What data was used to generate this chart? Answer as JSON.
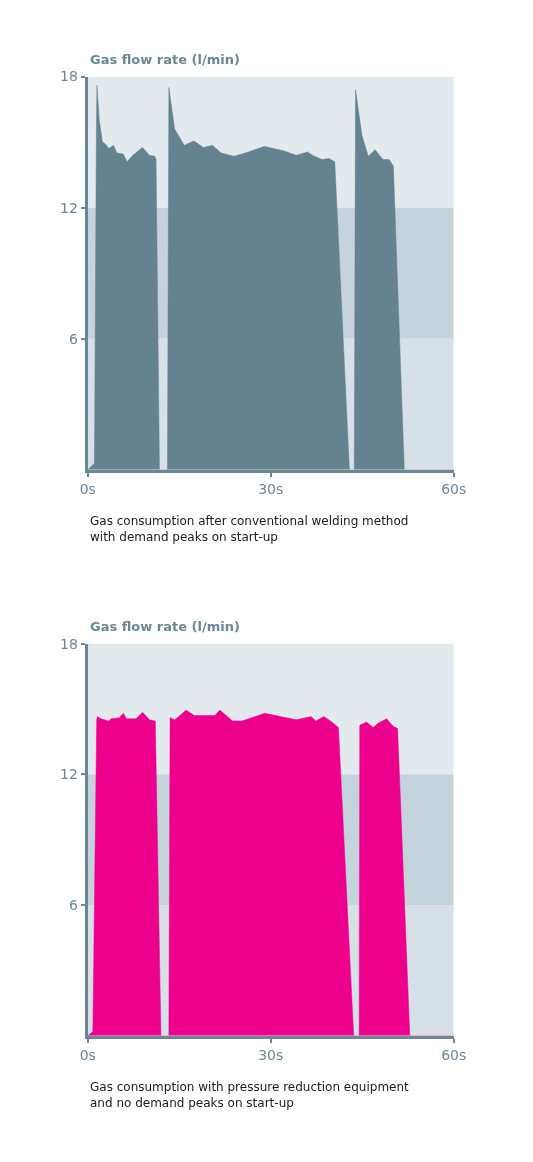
{
  "chart_data": [
    {
      "type": "area",
      "ylabel": "Gas flow rate (l/min)",
      "xlim": [
        0,
        60
      ],
      "ylim": [
        0,
        18
      ],
      "xticks": [
        {
          "value": 0,
          "label": "0s"
        },
        {
          "value": 30,
          "label": "30s"
        },
        {
          "value": 60,
          "label": "60s"
        }
      ],
      "yticks": [
        6,
        12,
        18
      ],
      "grid": false,
      "bands": [
        {
          "axis": "y",
          "from": 0,
          "to": 6,
          "color": "#d6e0e6"
        },
        {
          "axis": "y",
          "from": 6,
          "to": 12,
          "color": "#c5d3dc"
        },
        {
          "axis": "y",
          "from": 12,
          "to": 18,
          "color": "#e3eaee"
        }
      ],
      "series": [
        {
          "color": "#64828f",
          "x": [
            0,
            1.1,
            1.42,
            1.5,
            1.9,
            2.41,
            2.94,
            3.46,
            4.25,
            4.77,
            5.82,
            6.45,
            7.4,
            8.98,
            10.1,
            10.98,
            11.2,
            11.76,
            13.07,
            13.3,
            14.24,
            15.82,
            17.4,
            18.98,
            20.45,
            21.87,
            23.97,
            25.8,
            28.96,
            32.1,
            34.2,
            36.06,
            36.8,
            38.4,
            39.55,
            40.5,
            42.9,
            43.7,
            43.9,
            44.96,
            46.0,
            47.1,
            48.4,
            49.4,
            50.1,
            51.9,
            60
          ],
          "values": [
            0,
            0.3,
            15.5,
            17.6,
            16.0,
            15.0,
            14.9,
            14.7,
            14.85,
            14.5,
            14.45,
            14.1,
            14.4,
            14.75,
            14.4,
            14.35,
            14.2,
            0,
            0,
            17.5,
            15.6,
            14.85,
            15.05,
            14.75,
            14.85,
            14.5,
            14.35,
            14.5,
            14.8,
            14.6,
            14.4,
            14.55,
            14.4,
            14.2,
            14.25,
            14.1,
            0,
            0,
            17.4,
            15.3,
            14.35,
            14.65,
            14.2,
            14.2,
            13.9,
            0,
            0
          ]
        }
      ],
      "annotations": [
        "Gas consumption after conventional welding method\nwith demand peaks on start-up"
      ]
    },
    {
      "type": "area",
      "ylabel": "Gas flow rate (l/min)",
      "xlim": [
        0,
        60
      ],
      "ylim": [
        0,
        18
      ],
      "xticks": [
        {
          "value": 0,
          "label": "0s"
        },
        {
          "value": 30,
          "label": "30s"
        },
        {
          "value": 60,
          "label": "60s"
        }
      ],
      "yticks": [
        6,
        12,
        18
      ],
      "grid": false,
      "bands": [
        {
          "axis": "y",
          "from": 0,
          "to": 6,
          "color": "#d6e0e6"
        },
        {
          "axis": "y",
          "from": 6,
          "to": 12,
          "color": "#c5d3dc"
        },
        {
          "axis": "y",
          "from": 12,
          "to": 18,
          "color": "#e3eaee"
        }
      ],
      "series": [
        {
          "color": "#ec008c",
          "x": [
            0,
            0.84,
            1.47,
            1.6,
            2.15,
            3.46,
            3.83,
            5.2,
            5.83,
            6.35,
            7.93,
            8.98,
            10.13,
            11.08,
            12.0,
            13.3,
            13.5,
            14.3,
            16.13,
            17.45,
            20.87,
            21.65,
            23.75,
            25.3,
            29.0,
            34.2,
            36.6,
            37.4,
            38.7,
            39.8,
            41.1,
            43.6,
            44.5,
            44.6,
            45.7,
            46.8,
            47.6,
            49.0,
            50.1,
            50.8,
            52.8,
            60
          ],
          "values": [
            0,
            0.2,
            14.5,
            14.65,
            14.55,
            14.45,
            14.55,
            14.6,
            14.8,
            14.55,
            14.55,
            14.85,
            14.5,
            14.45,
            0,
            0,
            14.6,
            14.5,
            14.95,
            14.7,
            14.7,
            14.95,
            14.45,
            14.45,
            14.8,
            14.5,
            14.65,
            14.45,
            14.65,
            14.45,
            14.15,
            0,
            0,
            14.25,
            14.4,
            14.15,
            14.35,
            14.55,
            14.2,
            14.1,
            0,
            0
          ]
        }
      ],
      "annotations": [
        "Gas consumption with pressure reduction equipment\nand no demand peaks on start-up"
      ]
    }
  ]
}
